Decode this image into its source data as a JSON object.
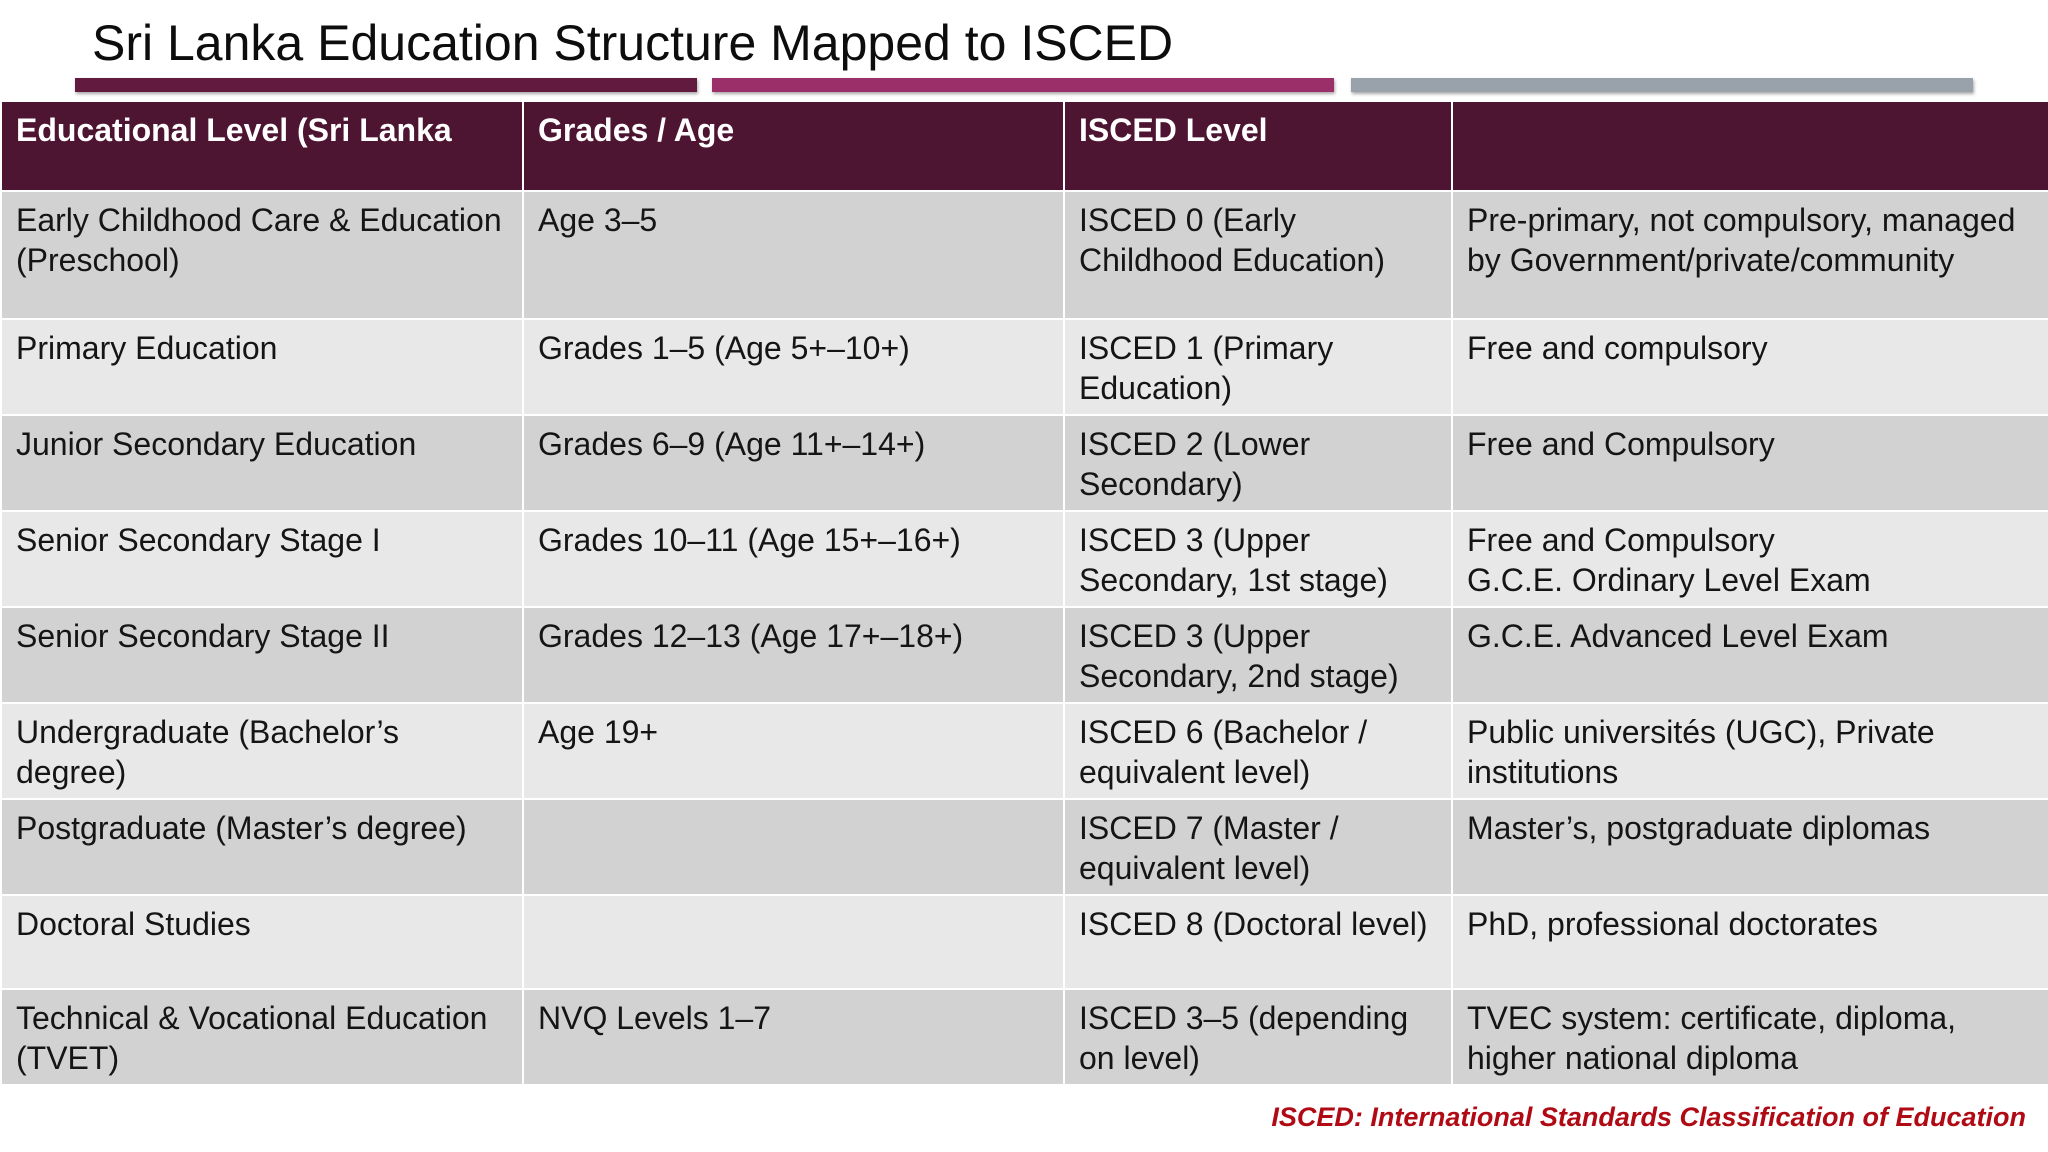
{
  "title": "Sri Lanka Education Structure Mapped to ISCED",
  "colors": {
    "header_bg": "#4e1533",
    "row_dark": "#d2d2d2",
    "row_light": "#e8e8e8",
    "bar_1": "#621b3f",
    "bar_2": "#9a2f6a",
    "bar_3": "#99a2ab",
    "footnote": "#b00a14"
  },
  "table": {
    "headers": [
      "Educational Level (Sri Lanka",
      "Grades / Age",
      "ISCED Level",
      ""
    ],
    "rows": [
      [
        "Early Childhood Care & Education (Preschool)",
        "Age 3–5",
        "ISCED 0 (Early Childhood Education)",
        "Pre-primary, not compulsory, managed by Government/private/community"
      ],
      [
        "Primary Education",
        "Grades 1–5 (Age 5+–10+)",
        "ISCED 1 (Primary Education)",
        "Free and compulsory"
      ],
      [
        "Junior Secondary Education",
        "Grades 6–9 (Age 11+–14+)",
        "ISCED 2 (Lower Secondary)",
        "Free and Compulsory"
      ],
      [
        "Senior Secondary Stage I",
        "Grades 10–11 (Age 15+–16+)",
        "ISCED 3 (Upper Secondary, 1st stage)",
        "Free and Compulsory\nG.C.E. Ordinary Level Exam"
      ],
      [
        "Senior Secondary Stage II",
        "Grades 12–13 (Age 17+–18+)",
        "ISCED 3 (Upper Secondary, 2nd stage)",
        "G.C.E. Advanced Level Exam"
      ],
      [
        "Undergraduate (Bachelor’s degree)",
        "Age 19+",
        "ISCED 6 (Bachelor / equivalent level)",
        "Public universités (UGC), Private institutions"
      ],
      [
        "Postgraduate (Master’s degree)",
        "",
        "ISCED 7 (Master / equivalent level)",
        "Master’s, postgraduate diplomas"
      ],
      [
        "Doctoral Studies",
        "",
        "ISCED 8 (Doctoral level)",
        "PhD, professional doctorates"
      ],
      [
        "Technical & Vocational Education (TVET)",
        "NVQ Levels 1–7",
        "ISCED 3–5 (depending on level)",
        "TVEC system: certificate, diploma, higher national diploma"
      ]
    ]
  },
  "footnote": "ISCED: International Standards Classification of Education"
}
